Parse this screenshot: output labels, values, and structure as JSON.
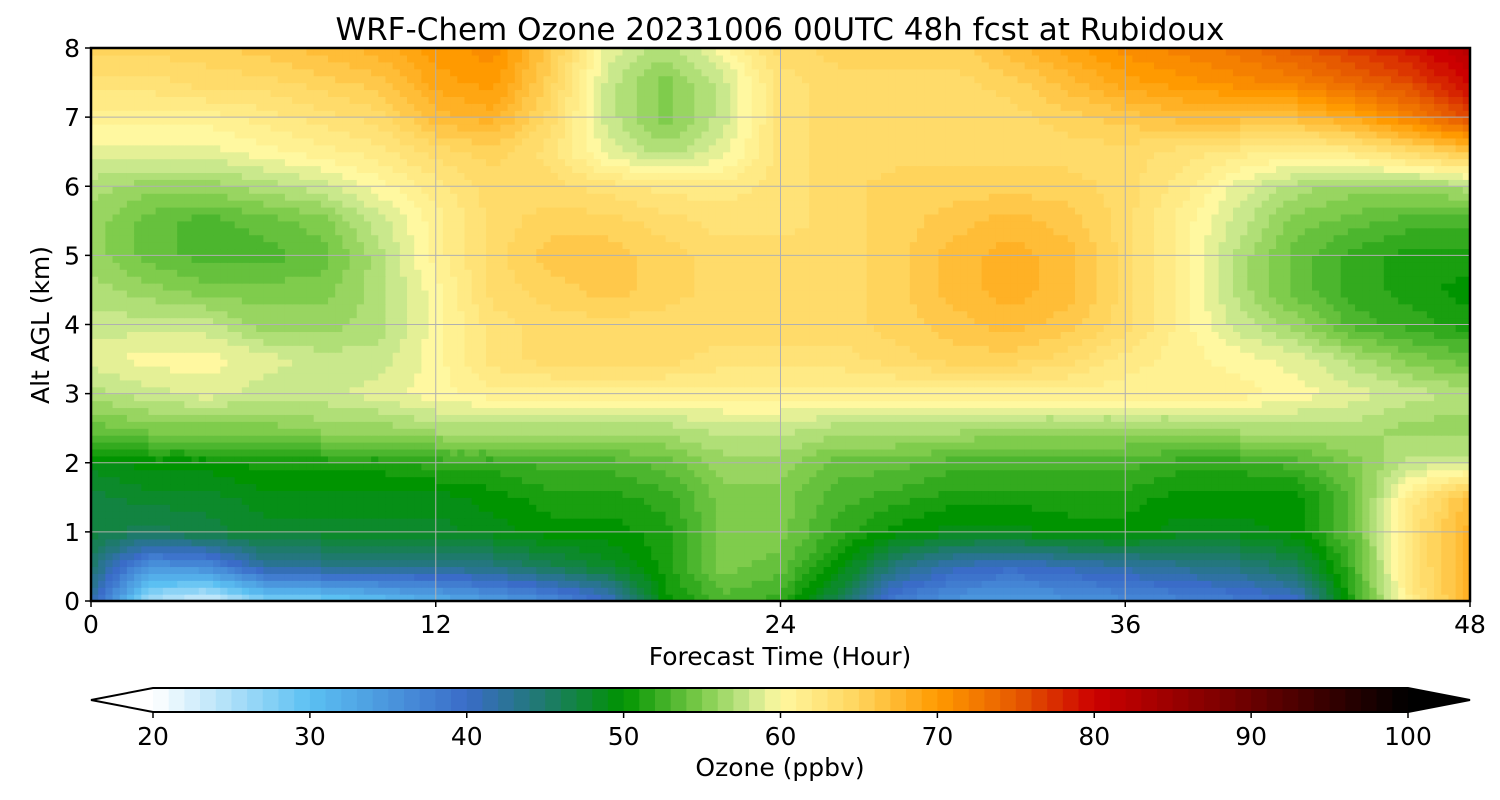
{
  "chart_data": {
    "type": "heatmap",
    "title": "WRF-Chem Ozone  20231006 00UTC 48h fcst at Rubidoux",
    "xlabel": "Forecast Time (Hour)",
    "ylabel": "Alt AGL (km)",
    "xlim": [
      0,
      48
    ],
    "ylim": [
      0,
      8
    ],
    "xticks": [
      "0",
      "12",
      "24",
      "36",
      "48"
    ],
    "yticks": [
      "0",
      "1",
      "2",
      "3",
      "4",
      "5",
      "6",
      "7",
      "8"
    ],
    "grid": true,
    "x": [
      0,
      2,
      4,
      6,
      8,
      10,
      12,
      14,
      16,
      18,
      20,
      22,
      24,
      26,
      28,
      30,
      32,
      34,
      36,
      38,
      40,
      42,
      44,
      46,
      48
    ],
    "y": [
      0,
      0.5,
      1,
      1.5,
      2,
      2.5,
      3,
      3.5,
      4,
      4.5,
      5,
      5.5,
      6,
      6.5,
      7,
      7.5,
      8
    ],
    "z": [
      [
        42,
        25,
        22,
        27,
        28,
        30,
        32,
        34,
        36,
        40,
        50,
        53,
        52,
        46,
        38,
        35,
        34,
        35,
        36,
        37,
        38,
        40,
        52,
        62,
        68
      ],
      [
        45,
        35,
        36,
        42,
        43,
        43,
        43,
        44,
        46,
        48,
        51,
        55,
        54,
        50,
        44,
        41,
        40,
        41,
        42,
        43,
        44,
        46,
        53,
        63,
        68
      ],
      [
        47,
        46,
        47,
        48,
        48,
        48,
        48,
        49,
        50,
        50,
        51,
        55,
        55,
        52,
        50,
        49,
        49,
        50,
        50,
        49,
        49,
        50,
        54,
        63,
        68
      ],
      [
        47,
        48,
        48,
        49,
        49,
        49,
        49,
        50,
        51,
        51,
        52,
        55,
        55,
        53,
        52,
        51,
        51,
        51,
        51,
        50,
        50,
        50,
        54,
        62,
        67
      ],
      [
        49,
        50,
        50,
        51,
        51,
        51,
        52,
        52,
        53,
        53,
        54,
        56,
        56,
        54,
        54,
        53,
        53,
        53,
        53,
        52,
        52,
        53,
        55,
        58,
        58
      ],
      [
        54,
        55,
        55,
        55,
        56,
        56,
        57,
        57,
        57,
        57,
        57,
        58,
        58,
        57,
        57,
        57,
        56,
        56,
        56,
        56,
        57,
        57,
        57,
        56,
        56
      ],
      [
        57,
        58,
        59,
        58,
        58,
        59,
        60,
        61,
        61,
        61,
        61,
        61,
        61,
        61,
        61,
        61,
        61,
        61,
        61,
        61,
        61,
        60,
        59,
        58,
        57
      ],
      [
        59,
        60,
        60,
        59,
        58,
        58,
        60,
        63,
        64,
        64,
        64,
        63,
        63,
        63,
        64,
        65,
        65,
        64,
        62,
        61,
        60,
        59,
        57,
        55,
        54
      ],
      [
        58,
        58,
        58,
        56,
        56,
        57,
        60,
        63,
        64,
        64,
        64,
        64,
        64,
        64,
        65,
        66,
        67,
        66,
        64,
        61,
        58,
        56,
        53,
        52,
        51
      ],
      [
        57,
        56,
        55,
        55,
        55,
        57,
        60,
        64,
        65,
        66,
        65,
        64,
        64,
        64,
        65,
        67,
        68,
        67,
        64,
        61,
        57,
        54,
        52,
        51,
        50
      ],
      [
        56,
        54,
        53,
        53,
        54,
        57,
        61,
        64,
        66,
        66,
        65,
        64,
        64,
        64,
        65,
        67,
        68,
        67,
        64,
        61,
        57,
        54,
        52,
        51,
        51
      ],
      [
        56,
        54,
        53,
        54,
        55,
        58,
        61,
        64,
        65,
        65,
        64,
        63,
        63,
        64,
        65,
        66,
        67,
        66,
        64,
        61,
        58,
        55,
        54,
        53,
        53
      ],
      [
        57,
        56,
        56,
        57,
        58,
        60,
        62,
        64,
        64,
        63,
        62,
        62,
        63,
        64,
        65,
        65,
        65,
        65,
        64,
        62,
        59,
        57,
        56,
        56,
        57
      ],
      [
        59,
        59,
        59,
        60,
        61,
        62,
        64,
        65,
        63,
        59,
        57,
        59,
        63,
        64,
        64,
        64,
        64,
        64,
        64,
        63,
        62,
        61,
        62,
        64,
        66
      ],
      [
        61,
        61,
        61,
        62,
        63,
        64,
        67,
        68,
        64,
        58,
        55,
        58,
        63,
        64,
        64,
        64,
        64,
        65,
        66,
        67,
        67,
        67,
        69,
        72,
        76
      ],
      [
        63,
        63,
        64,
        64,
        65,
        66,
        69,
        70,
        65,
        58,
        55,
        58,
        63,
        64,
        64,
        64,
        65,
        67,
        69,
        70,
        71,
        72,
        74,
        76,
        80
      ],
      [
        65,
        65,
        65,
        66,
        67,
        68,
        70,
        71,
        66,
        59,
        57,
        60,
        64,
        65,
        65,
        65,
        67,
        69,
        71,
        72,
        73,
        75,
        77,
        79,
        82
      ]
    ],
    "colorbar": {
      "label": "Ozone  (ppbv)",
      "min": 20,
      "max": 100,
      "ticks": [
        "20",
        "30",
        "40",
        "50",
        "60",
        "70",
        "80",
        "90",
        "100"
      ],
      "extend": "both",
      "stops": [
        [
          20,
          "#ffffff"
        ],
        [
          30,
          "#5bc0f2"
        ],
        [
          40,
          "#3a6cc8"
        ],
        [
          45,
          "#1e7a6c"
        ],
        [
          50,
          "#009400"
        ],
        [
          55,
          "#7fcc4c"
        ],
        [
          58,
          "#c9e88c"
        ],
        [
          60,
          "#fff8a0"
        ],
        [
          65,
          "#ffd45c"
        ],
        [
          70,
          "#ff9a00"
        ],
        [
          75,
          "#e65a00"
        ],
        [
          80,
          "#cc0000"
        ],
        [
          90,
          "#6a0000"
        ],
        [
          100,
          "#000000"
        ]
      ]
    }
  }
}
